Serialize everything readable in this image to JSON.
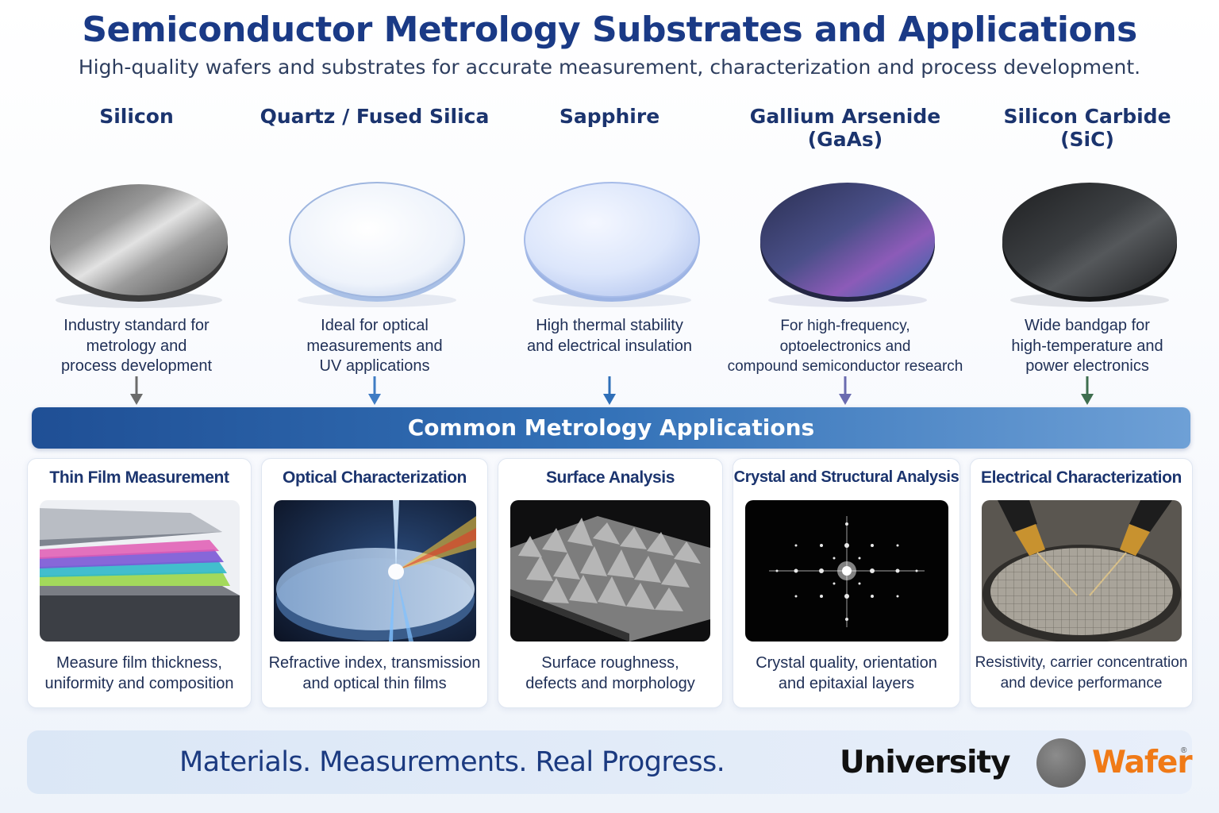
{
  "header": {
    "title": "Semiconductor Metrology Substrates and Applications",
    "subtitle": "High-quality wafers and substrates for accurate measurement, characterization and process development."
  },
  "substrates": [
    {
      "name_line1": "Silicon",
      "name_line2": "",
      "desc": [
        "Industry standard for",
        "metrology and",
        "process development"
      ],
      "arrow_color": "#6b6b6b"
    },
    {
      "name_line1": "Quartz / Fused Silica",
      "name_line2": "",
      "desc": [
        "Ideal for optical",
        "measurements and",
        "UV applications"
      ],
      "arrow_color": "#3f7cc4"
    },
    {
      "name_line1": "Sapphire",
      "name_line2": "",
      "desc": [
        "High thermal stability",
        "and electrical insulation",
        ""
      ],
      "arrow_color": "#2f6fb8"
    },
    {
      "name_line1": "Gallium Arsenide",
      "name_line2": "(GaAs)",
      "desc": [
        "For high-frequency,",
        "optoelectronics and",
        "compound semiconductor research"
      ],
      "arrow_color": "#6a6bb0"
    },
    {
      "name_line1": "Silicon Carbide",
      "name_line2": "(SiC)",
      "desc": [
        "Wide bandgap for",
        "high-temperature and",
        "power electronics"
      ],
      "arrow_color": "#3f6e4f"
    }
  ],
  "banner": {
    "label": "Common Metrology Applications"
  },
  "applications": [
    {
      "title": "Thin Film Measurement",
      "desc": [
        "Measure film thickness,",
        "uniformity and composition"
      ]
    },
    {
      "title": "Optical Characterization",
      "desc": [
        "Refractive index, transmission",
        "and optical thin films"
      ]
    },
    {
      "title": "Surface Analysis",
      "desc": [
        "Surface roughness,",
        "defects and morphology"
      ]
    },
    {
      "title": "Crystal and Structural Analysis",
      "desc": [
        "Crystal quality, orientation",
        "and epitaxial layers"
      ]
    },
    {
      "title": "Electrical Characterization",
      "desc": [
        "Resistivity, carrier concentration",
        "and device performance"
      ]
    }
  ],
  "footer": {
    "tagline": "Materials. Measurements. Real Progress.",
    "logo_part1": "University",
    "logo_part2": "Wafer",
    "logo_mark": "®"
  },
  "colors": {
    "title": "#1a3a86",
    "banner_start": "#1f4f95",
    "banner_end": "#6ea0d6",
    "logo_orange": "#f07a17"
  }
}
